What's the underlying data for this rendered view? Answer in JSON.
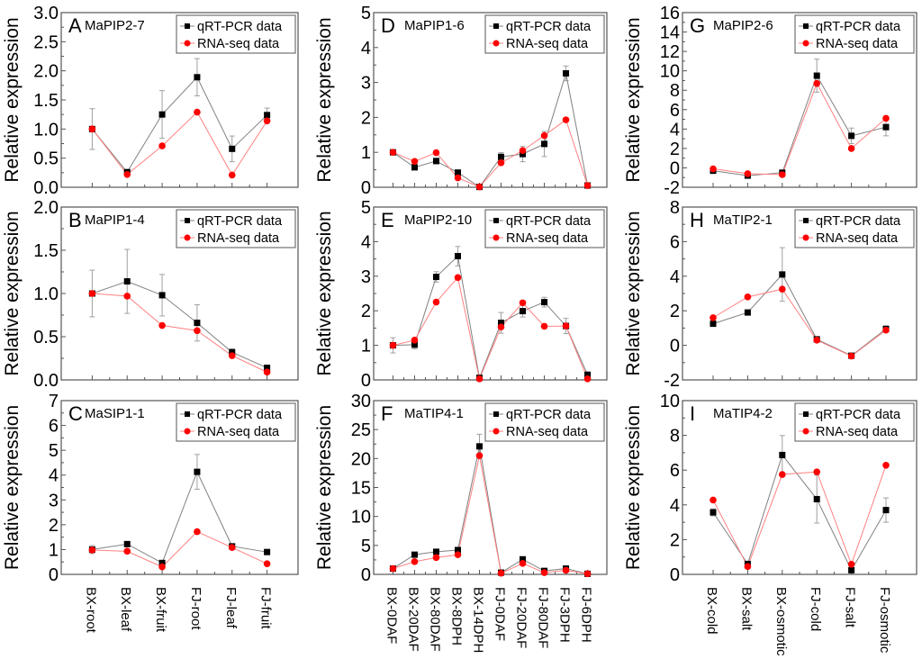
{
  "figure": {
    "colors": {
      "qrt": "#000000",
      "qrt_line": "#808080",
      "rna": "#ff0000",
      "rna_line": "#ff8080",
      "errbar": "#a0a0a0",
      "axis": "#555555"
    },
    "legend": [
      "qRT-PCR data",
      "RNA-seq data"
    ]
  },
  "chart_data": [
    {
      "type": "line",
      "panel": "A",
      "title": "MaPIP2-7",
      "xlabel": "",
      "ylabel": "Relative expression",
      "categories": [
        "BX-root",
        "BX-leaf",
        "BX-fruit",
        "FJ-root",
        "FJ-leaf",
        "FJ-fruit"
      ],
      "ylim": [
        0,
        3.0
      ],
      "yticks": [
        "0.0",
        "0.5",
        "1.0",
        "1.5",
        "2.0",
        "2.5",
        "3.0"
      ],
      "ytick_values": [
        0,
        0.5,
        1.0,
        1.5,
        2.0,
        2.5,
        3.0
      ],
      "legend": "top-right",
      "series": [
        {
          "name": "qRT-PCR data",
          "values": [
            1.0,
            0.26,
            1.25,
            1.89,
            0.66,
            1.24
          ],
          "errors": [
            0.35,
            0.02,
            0.41,
            0.32,
            0.22,
            0.12
          ]
        },
        {
          "name": "RNA-seq data",
          "values": [
            1.0,
            0.22,
            0.71,
            1.29,
            0.21,
            1.14
          ]
        }
      ]
    },
    {
      "type": "line",
      "panel": "B",
      "title": "MaPIP1-4",
      "xlabel": "",
      "ylabel": "Relative expression",
      "categories": [
        "BX-root",
        "BX-leaf",
        "BX-fruit",
        "FJ-root",
        "FJ-leaf",
        "FJ-fruit"
      ],
      "ylim": [
        0,
        2.0
      ],
      "yticks": [
        "0.0",
        "0.5",
        "1.0",
        "1.5",
        "2.0"
      ],
      "ytick_values": [
        0,
        0.5,
        1.0,
        1.5,
        2.0
      ],
      "legend": "top-right",
      "series": [
        {
          "name": "qRT-PCR data",
          "values": [
            1.0,
            1.14,
            0.98,
            0.66,
            0.32,
            0.14
          ],
          "errors": [
            0.27,
            0.37,
            0.24,
            0.21,
            0.04,
            0.02
          ]
        },
        {
          "name": "RNA-seq data",
          "values": [
            1.0,
            0.97,
            0.63,
            0.57,
            0.28,
            0.09
          ]
        }
      ]
    },
    {
      "type": "line",
      "panel": "C",
      "title": "MaSIP1-1",
      "xlabel": "",
      "ylabel": "Relative expression",
      "categories": [
        "BX-root",
        "BX-leaf",
        "BX-fruit",
        "FJ-root",
        "FJ-leaf",
        "FJ-fruit"
      ],
      "ylim": [
        0,
        7
      ],
      "yticks": [
        "0",
        "1",
        "2",
        "3",
        "4",
        "5",
        "6",
        "7"
      ],
      "ytick_values": [
        0,
        1,
        2,
        3,
        4,
        5,
        6,
        7
      ],
      "legend": "top-right",
      "series": [
        {
          "name": "qRT-PCR data",
          "values": [
            1.0,
            1.22,
            0.46,
            4.13,
            1.13,
            0.9
          ],
          "errors": [
            0.16,
            0.04,
            0.05,
            0.7,
            0.04,
            0.03
          ]
        },
        {
          "name": "RNA-seq data",
          "values": [
            0.98,
            0.93,
            0.3,
            1.72,
            1.08,
            0.43
          ]
        }
      ]
    },
    {
      "type": "line",
      "panel": "D",
      "title": "MaPIP1-6",
      "xlabel": "",
      "ylabel": "Relative expression",
      "categories": [
        "BX-0DAF",
        "BX-20DAF",
        "BX-80DAF",
        "BX-8DPH",
        "BX-14DPH",
        "FJ-0DAF",
        "FJ-20DAF",
        "FJ-80DAF",
        "FJ-3DPH",
        "FJ-6DPH"
      ],
      "ylim": [
        0,
        5
      ],
      "yticks": [
        "0",
        "1",
        "2",
        "3",
        "4",
        "5"
      ],
      "ytick_values": [
        0,
        1,
        2,
        3,
        4,
        5
      ],
      "legend": "top-right",
      "series": [
        {
          "name": "qRT-PCR data",
          "values": [
            1.0,
            0.57,
            0.75,
            0.42,
            0.01,
            0.87,
            0.95,
            1.24,
            3.26,
            0.05
          ],
          "errors": [
            0.03,
            0.04,
            0.08,
            0.04,
            0.01,
            0.12,
            0.22,
            0.36,
            0.21,
            0.01
          ]
        },
        {
          "name": "RNA-seq data",
          "values": [
            1.0,
            0.74,
            0.99,
            0.27,
            0.01,
            0.7,
            1.05,
            1.48,
            1.93,
            0.05
          ]
        }
      ]
    },
    {
      "type": "line",
      "panel": "E",
      "title": "MaPIP2-10",
      "xlabel": "",
      "ylabel": "Relative expression",
      "categories": [
        "BX-0DAF",
        "BX-20DAF",
        "BX-80DAF",
        "BX-8DPH",
        "BX-14DPH",
        "FJ-0DAF",
        "FJ-20DAF",
        "FJ-80DAF",
        "FJ-3DPH",
        "FJ-6DPH"
      ],
      "ylim": [
        0,
        5
      ],
      "yticks": [
        "0",
        "1",
        "2",
        "3",
        "4",
        "5"
      ],
      "ytick_values": [
        0,
        1,
        2,
        3,
        4,
        5
      ],
      "legend": "top-right",
      "series": [
        {
          "name": "qRT-PCR data",
          "values": [
            1.0,
            1.02,
            2.98,
            3.58,
            0.06,
            1.65,
            1.99,
            2.25,
            1.56,
            0.15
          ],
          "errors": [
            0.22,
            0.12,
            0.15,
            0.28,
            0.02,
            0.3,
            0.17,
            0.14,
            0.22,
            0.03
          ]
        },
        {
          "name": "RNA-seq data",
          "values": [
            1.0,
            1.15,
            2.25,
            2.96,
            0.03,
            1.53,
            2.23,
            1.55,
            1.56,
            0.03
          ]
        }
      ]
    },
    {
      "type": "line",
      "panel": "F",
      "title": "MaTIP4-1",
      "xlabel": "",
      "ylabel": "Relative expression",
      "categories": [
        "BX-0DAF",
        "BX-20DAF",
        "BX-80DAF",
        "BX-8DPH",
        "BX-14DPH",
        "FJ-0DAF",
        "FJ-20DAF",
        "FJ-80DAF",
        "FJ-3DPH",
        "FJ-6DPH"
      ],
      "ylim": [
        0,
        30
      ],
      "yticks": [
        "0",
        "5",
        "10",
        "15",
        "20",
        "25",
        "30"
      ],
      "ytick_values": [
        0,
        5,
        10,
        15,
        20,
        25,
        30
      ],
      "legend": "top-right",
      "series": [
        {
          "name": "qRT-PCR data",
          "values": [
            1.0,
            3.4,
            3.9,
            4.2,
            22.1,
            0.3,
            2.6,
            0.6,
            1.0,
            0.1
          ],
          "errors": [
            0.1,
            0.2,
            0.2,
            0.3,
            2.1,
            0.05,
            0.2,
            0.05,
            0.1,
            0.02
          ]
        },
        {
          "name": "RNA-seq data",
          "values": [
            1.0,
            2.2,
            2.9,
            3.4,
            20.5,
            0.2,
            1.9,
            0.3,
            0.7,
            0.1
          ]
        }
      ]
    },
    {
      "type": "line",
      "panel": "G",
      "title": "MaPIP2-6",
      "xlabel": "",
      "ylabel": "Relative expression",
      "categories": [
        "BX-cold",
        "BX-salt",
        "BX-osmotic",
        "FJ-cold",
        "FJ-salt",
        "FJ-osmotic"
      ],
      "ylim": [
        -2,
        16
      ],
      "yticks": [
        "-2",
        "0",
        "2",
        "4",
        "6",
        "8",
        "10",
        "12",
        "14",
        "16"
      ],
      "ytick_values": [
        -2,
        0,
        2,
        4,
        6,
        8,
        10,
        12,
        14,
        16
      ],
      "legend": "top-right",
      "series": [
        {
          "name": "qRT-PCR data",
          "values": [
            -0.3,
            -0.8,
            -0.5,
            9.5,
            3.3,
            4.2
          ],
          "errors": [
            0.15,
            0.1,
            0.15,
            1.7,
            0.8,
            0.9
          ]
        },
        {
          "name": "RNA-seq data",
          "values": [
            -0.1,
            -0.6,
            -0.7,
            8.7,
            2.0,
            5.1
          ]
        }
      ]
    },
    {
      "type": "line",
      "panel": "H",
      "title": "MaTIP2-1",
      "xlabel": "",
      "ylabel": "Relative expression",
      "categories": [
        "BX-cold",
        "BX-salt",
        "BX-osmotic",
        "FJ-cold",
        "FJ-salt",
        "FJ-osmotic"
      ],
      "ylim": [
        -2,
        8
      ],
      "yticks": [
        "-2",
        "0",
        "2",
        "4",
        "6",
        "8"
      ],
      "ytick_values": [
        -2,
        0,
        2,
        4,
        6,
        8
      ],
      "legend": "top-right",
      "series": [
        {
          "name": "qRT-PCR data",
          "values": [
            1.25,
            1.9,
            4.1,
            0.35,
            -0.6,
            0.95
          ],
          "errors": [
            0.08,
            0.1,
            1.55,
            0.05,
            0.05,
            0.18
          ]
        },
        {
          "name": "RNA-seq data",
          "values": [
            1.6,
            2.8,
            3.25,
            0.3,
            -0.62,
            0.88
          ]
        }
      ]
    },
    {
      "type": "line",
      "panel": "I",
      "title": "MaTIP4-2",
      "xlabel": "",
      "ylabel": "Relative expression",
      "categories": [
        "BX-cold",
        "BX-salt",
        "BX-osmotic",
        "FJ-cold",
        "FJ-salt",
        "FJ-osmotic"
      ],
      "ylim": [
        0,
        10
      ],
      "yticks": [
        "0",
        "2",
        "4",
        "6",
        "8",
        "10"
      ],
      "ytick_values": [
        0,
        2,
        4,
        6,
        8,
        10
      ],
      "legend": "top-right",
      "series": [
        {
          "name": "qRT-PCR data",
          "values": [
            3.57,
            0.6,
            6.87,
            4.33,
            0.24,
            3.7
          ],
          "errors": [
            0.2,
            0.05,
            1.12,
            1.38,
            0.03,
            0.7
          ]
        },
        {
          "name": "RNA-seq data",
          "values": [
            4.28,
            0.45,
            5.75,
            5.9,
            0.58,
            6.28
          ]
        }
      ]
    }
  ]
}
